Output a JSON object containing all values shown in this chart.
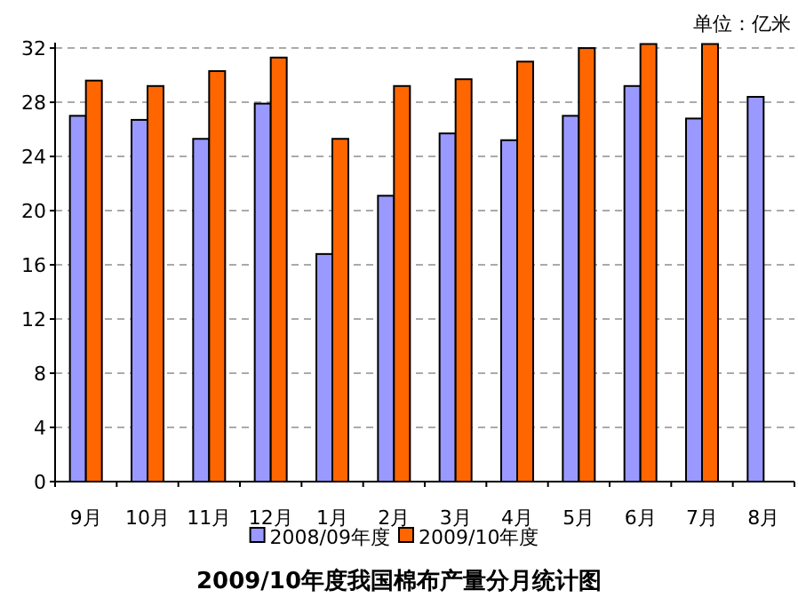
{
  "chart_data": {
    "type": "bar",
    "title": "2009/10年度我国棉布产量分月统计图",
    "annotations": [
      "单位：亿米"
    ],
    "categories": [
      "9月",
      "10月",
      "11月",
      "12月",
      "1月",
      "2月",
      "3月",
      "4月",
      "5月",
      "6月",
      "7月",
      "8月"
    ],
    "series": [
      {
        "name": "2008/09年度",
        "color": "#9999ff",
        "values": [
          27.0,
          26.7,
          25.3,
          27.9,
          16.8,
          21.1,
          25.7,
          25.2,
          27.0,
          29.2,
          26.8,
          28.4
        ]
      },
      {
        "name": "2009/10年度",
        "color": "#ff6600",
        "values": [
          29.6,
          29.2,
          30.3,
          31.3,
          25.3,
          29.2,
          29.7,
          31.0,
          32.0,
          32.3,
          32.3,
          null
        ]
      }
    ],
    "ylim": [
      0,
      32.4
    ],
    "yticks": [
      0,
      4,
      8,
      12,
      16,
      20,
      24,
      28,
      32
    ],
    "grid": "y",
    "legend": "bottom"
  }
}
